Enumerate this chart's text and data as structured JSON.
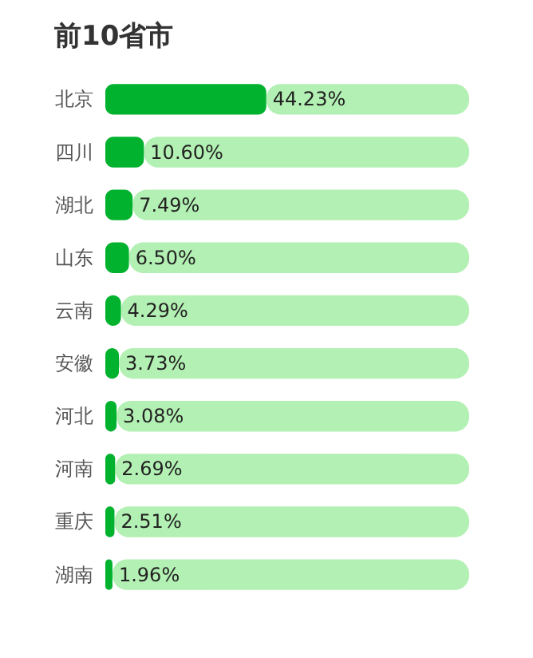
{
  "chart_data": {
    "type": "bar",
    "orientation": "horizontal",
    "stacked": true,
    "title": "前10省市",
    "categories": [
      "北京",
      "四川",
      "湖北",
      "山东",
      "云南",
      "安徽",
      "河北",
      "河南",
      "重庆",
      "湖南"
    ],
    "series": [
      {
        "color": "#00b22d",
        "values": [
          44.23,
          10.6,
          7.49,
          6.5,
          4.29,
          3.73,
          3.08,
          2.69,
          2.51,
          1.96
        ],
        "value_labels": [
          "44.23%",
          "10.60%",
          "7.49%",
          "6.50%",
          "4.29%",
          "3.73%",
          "3.08%",
          "2.69%",
          "2.51%",
          "1.96%"
        ]
      },
      {
        "color": "#b3f0b3",
        "values": [
          55.77,
          89.4,
          92.51,
          93.5,
          95.71,
          96.27,
          96.92,
          97.31,
          97.49,
          98.04
        ]
      }
    ],
    "xlim": [
      0,
      100
    ],
    "tick_labels": "y"
  }
}
